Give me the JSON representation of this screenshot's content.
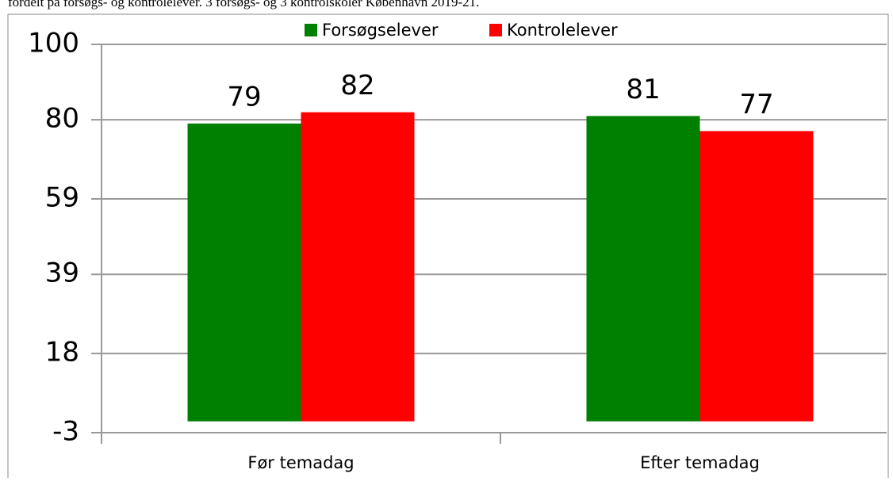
{
  "chart_data": {
    "type": "bar",
    "title": "fordelt på forsøgs- og kontrolelever. 3 forsøgs- og 3 kontrolskoler København 2019-21.",
    "categories": [
      "Før temadag",
      "Efter temadag"
    ],
    "series": [
      {
        "name": "Forsøgselever",
        "color": "#008000",
        "values": [
          79,
          81
        ]
      },
      {
        "name": "Kontrolelever",
        "color": "#ff0000",
        "values": [
          82,
          77
        ]
      }
    ],
    "ylim": [
      -3,
      100
    ],
    "yticks": [
      -3,
      18,
      39,
      59,
      80,
      100
    ],
    "grid": true,
    "legend": "top"
  }
}
